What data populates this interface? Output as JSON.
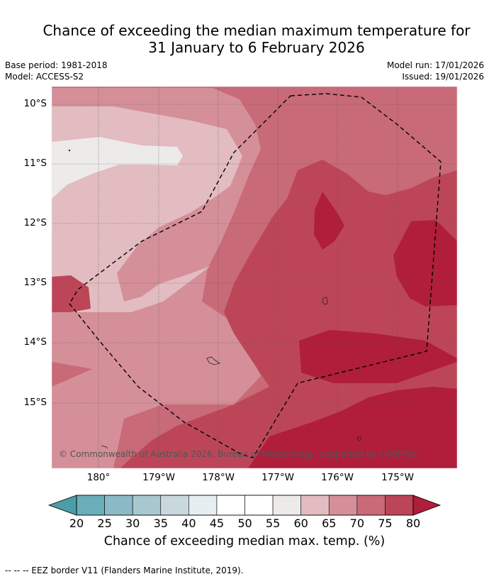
{
  "title": {
    "line1": "Chance of exceeding the median maximum temperature for",
    "line2": "31 January to 6 February 2026"
  },
  "meta": {
    "base_period": "Base period: 1981-2018",
    "model": "Model: ACCESS-S2",
    "model_run": "Model run: 17/01/2026",
    "issued": "Issued: 19/01/2026"
  },
  "map": {
    "latitude_labels": [
      "10°S",
      "11°S",
      "12°S",
      "13°S",
      "14°S",
      "15°S"
    ],
    "longitude_labels": [
      "180°",
      "179°W",
      "178°W",
      "177°W",
      "176°W",
      "175°W"
    ],
    "copyright": "© Commonwealth of Australia 2026, Bureau of Meteorology, supported by COSPPac",
    "lat_range_deg": [
      -16.0,
      -9.7
    ],
    "lon_range_deg": [
      -180.8,
      -174.0
    ],
    "border_style": "dashed"
  },
  "colorbar": {
    "ticks": [
      "20",
      "25",
      "30",
      "35",
      "40",
      "45",
      "50",
      "55",
      "60",
      "65",
      "70",
      "75",
      "80"
    ],
    "colors": {
      "below_20": "#4b9ea8",
      "20-25": "#6aaeb9",
      "25-30": "#8bbac6",
      "30-35": "#a9c7cf",
      "35-40": "#c8d8dd",
      "40-45": "#e6eef1",
      "45-50": "#ffffff",
      "50-55": "#ffffff",
      "55-60": "#edebe9",
      "60-65": "#e2bcc1",
      "65-70": "#d58f98",
      "70-75": "#c86a77",
      "75-80": "#bc4658",
      "above_80": "#b01e3a"
    },
    "label": "Chance of exceeding median max. temp. (%)"
  },
  "footnote": "--  --  -- EEZ border V11 (Flanders Marine Institute, 2019)."
}
